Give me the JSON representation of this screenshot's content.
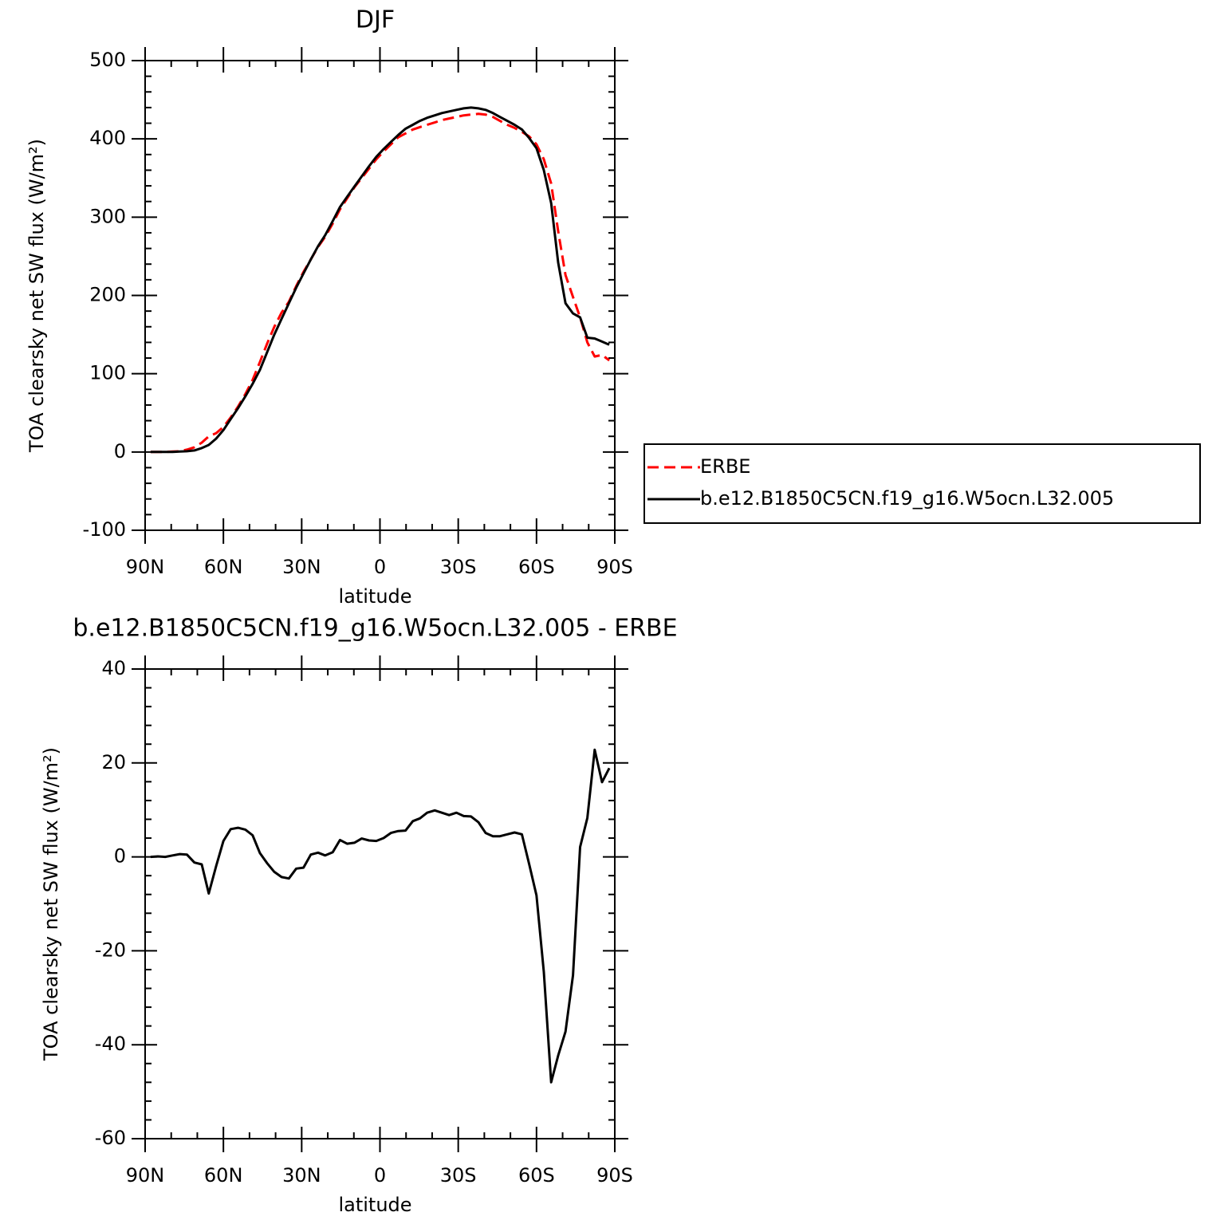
{
  "chart_data": [
    {
      "type": "line",
      "title": "DJF",
      "xlabel": "latitude",
      "ylabel": "TOA clearsky net SW flux (W/m²)",
      "x": [
        87.9,
        85.1,
        82.3,
        79.5,
        76.7,
        74.0,
        71.1,
        68.3,
        65.6,
        62.8,
        60.0,
        57.2,
        54.4,
        51.6,
        48.8,
        46.0,
        43.3,
        40.5,
        37.7,
        34.9,
        32.1,
        29.3,
        26.5,
        23.7,
        21.0,
        18.1,
        15.3,
        12.6,
        9.8,
        7.0,
        4.2,
        1.4,
        -1.4,
        -4.2,
        -7.0,
        -9.8,
        -12.6,
        -15.3,
        -18.1,
        -21.0,
        -23.7,
        -26.5,
        -29.3,
        -32.1,
        -34.9,
        -37.7,
        -40.5,
        -43.3,
        -46.0,
        -48.8,
        -51.6,
        -54.4,
        -57.2,
        -60.0,
        -62.8,
        -65.6,
        -68.3,
        -71.1,
        -74.0,
        -76.7,
        -79.5,
        -82.3,
        -85.1,
        -87.9
      ],
      "series": [
        {
          "name": "ERBE",
          "color": "#ff0000",
          "linestyle": "dashed",
          "values": [
            0,
            0,
            0,
            0.5,
            1,
            3,
            6,
            12,
            20,
            24,
            32,
            44,
            58,
            74,
            92,
            115,
            138,
            160,
            178,
            192,
            212,
            230,
            246,
            262,
            275,
            292,
            310,
            324,
            338,
            350,
            362,
            374,
            384,
            393,
            402,
            407,
            412,
            415,
            418,
            421,
            424,
            426,
            428,
            430,
            431,
            432,
            431,
            428,
            423,
            418,
            414,
            409,
            403,
            393,
            374,
            343,
            282,
            226,
            198,
            172,
            140,
            122,
            124,
            117
          ]
        },
        {
          "name": "b.e12.B1850C5CN.f19_g16.W5ocn.L32.005",
          "color": "#000000",
          "linestyle": "solid",
          "values": [
            0,
            0,
            0,
            0,
            0.5,
            1,
            2,
            5,
            9,
            17,
            28,
            42,
            56,
            71,
            87,
            105,
            127,
            150,
            170,
            190,
            210,
            228,
            246,
            263,
            277,
            295,
            313,
            326,
            339,
            352,
            365,
            377,
            387,
            396,
            405,
            413,
            418,
            423,
            427,
            430,
            433,
            435,
            437,
            439,
            440,
            439,
            437,
            433,
            428,
            423,
            418,
            412,
            401,
            388,
            360,
            318,
            242,
            190,
            177,
            172,
            146,
            145,
            141,
            137
          ]
        }
      ],
      "xlim": [
        90,
        -90
      ],
      "xticks": [
        {
          "value": 90,
          "label": "90N"
        },
        {
          "value": 60,
          "label": "60N"
        },
        {
          "value": 30,
          "label": "30N"
        },
        0,
        {
          "value": -30,
          "label": "30S"
        },
        {
          "value": -60,
          "label": "60S"
        },
        {
          "value": -90,
          "label": "90S"
        }
      ],
      "ylim": [
        -100,
        500
      ],
      "yticks": [
        -100,
        0,
        100,
        200,
        300,
        400,
        500
      ],
      "legend": "right"
    },
    {
      "type": "line",
      "title": "b.e12.B1850C5CN.f19_g16.W5ocn.L32.005 - ERBE",
      "xlabel": "latitude",
      "ylabel": "TOA clearsky net SW flux (W/m²)",
      "x": [
        87.9,
        85.1,
        82.3,
        79.5,
        76.7,
        74.0,
        71.1,
        68.3,
        65.6,
        62.8,
        60.0,
        57.2,
        54.4,
        51.6,
        48.8,
        46.0,
        43.3,
        40.5,
        37.7,
        34.9,
        32.1,
        29.3,
        26.5,
        23.7,
        21.0,
        18.1,
        15.3,
        12.6,
        9.8,
        7.0,
        4.2,
        1.4,
        -1.4,
        -4.2,
        -7.0,
        -9.8,
        -12.6,
        -15.3,
        -18.1,
        -21.0,
        -23.7,
        -26.5,
        -29.3,
        -32.1,
        -34.9,
        -37.7,
        -40.5,
        -43.3,
        -46.0,
        -48.8,
        -51.6,
        -54.4,
        -57.2,
        -60.0,
        -62.8,
        -65.6,
        -68.3,
        -71.1,
        -74.0,
        -76.7,
        -79.5,
        -82.3,
        -85.1,
        -87.9
      ],
      "values": [
        0,
        0.1,
        0,
        0.3,
        0.6,
        0.5,
        -1.2,
        -1.6,
        -7.8,
        -2.0,
        3.4,
        5.9,
        6.2,
        5.8,
        4.6,
        0.8,
        -1.3,
        -3.2,
        -4.3,
        -4.6,
        -2.5,
        -2.3,
        0.5,
        0.9,
        0.3,
        1.0,
        3.6,
        2.8,
        3.0,
        3.9,
        3.5,
        3.4,
        4.0,
        5.1,
        5.5,
        5.6,
        7.6,
        8.2,
        9.4,
        9.9,
        9.4,
        8.9,
        9.4,
        8.7,
        8.6,
        7.4,
        5.1,
        4.4,
        4.4,
        4.8,
        5.2,
        4.8,
        -1.6,
        -8.2,
        -24.5,
        -48,
        -42.3,
        -37.2,
        -25.2,
        2.1,
        8.3,
        22.8,
        15.9,
        18.9
      ],
      "color": "#000000",
      "xlim": [
        90,
        -90
      ],
      "xticks": [
        {
          "value": 90,
          "label": "90N"
        },
        {
          "value": 60,
          "label": "60N"
        },
        {
          "value": 30,
          "label": "30N"
        },
        0,
        {
          "value": -30,
          "label": "30S"
        },
        {
          "value": -60,
          "label": "60S"
        },
        {
          "value": -90,
          "label": "90S"
        }
      ],
      "ylim": [
        -60,
        40
      ],
      "yticks": [
        -60,
        -40,
        -20,
        0,
        20,
        40
      ]
    }
  ]
}
